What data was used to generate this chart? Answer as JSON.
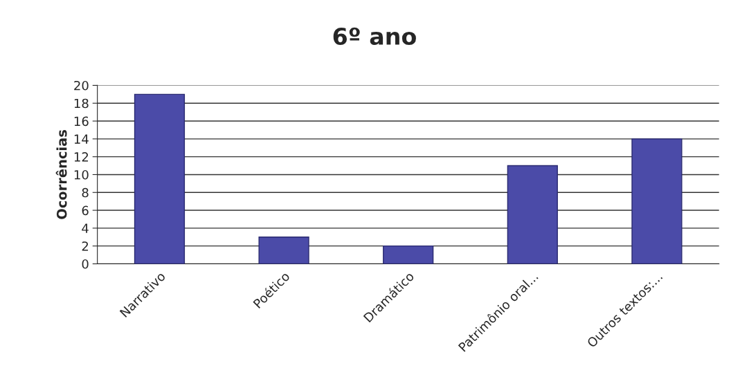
{
  "chart_data": {
    "type": "bar",
    "title": "6º ano",
    "ylabel": "Ocorrências",
    "categories": [
      "Narrativo",
      "Poético",
      "Dramático",
      "Patrimônio oral...",
      "Outros textos:..."
    ],
    "values": [
      19,
      3,
      2,
      11,
      14
    ],
    "color": "#4b4ba8",
    "ylim": [
      0,
      20
    ],
    "yticks": [
      0,
      2,
      4,
      6,
      8,
      10,
      12,
      14,
      16,
      18,
      20
    ],
    "grid": "y"
  }
}
